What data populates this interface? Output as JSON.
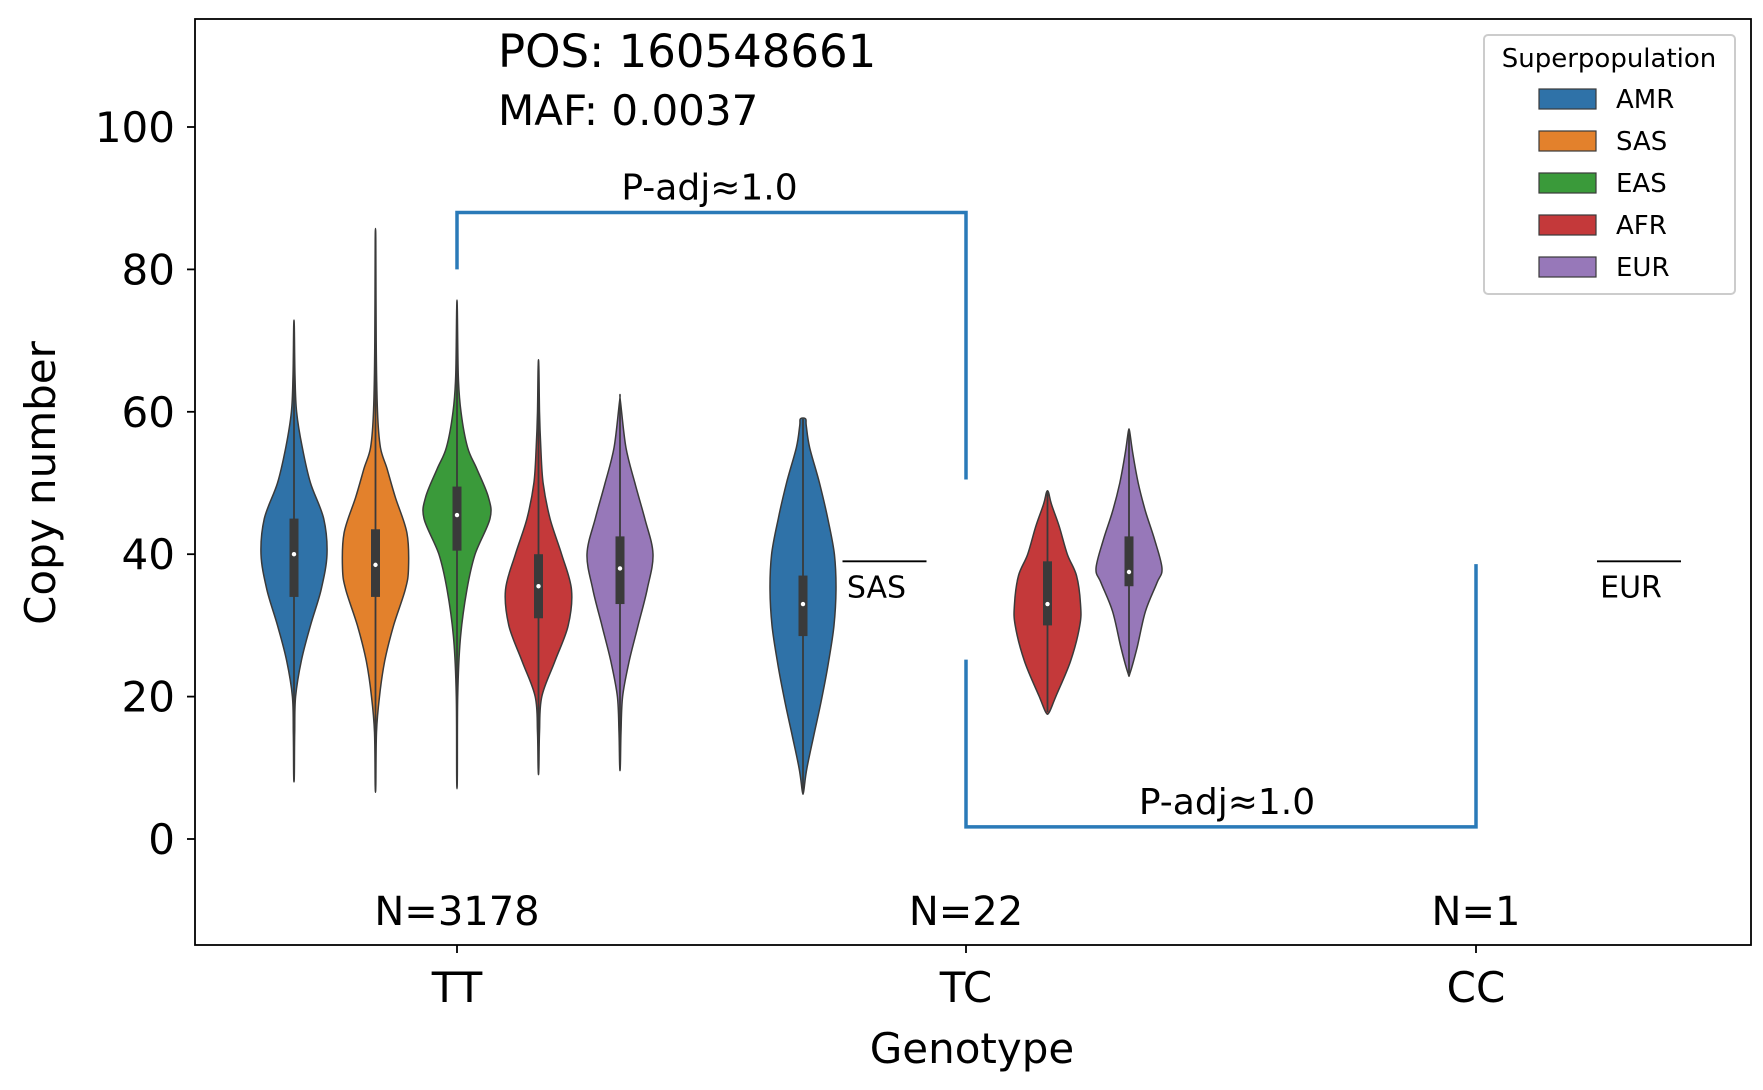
{
  "chart_data": {
    "type": "violin",
    "annotations": {
      "pos": "POS: 160548661",
      "maf": "MAF: 0.0037",
      "pval_upper": "P-adj≈1.0",
      "pval_lower": "P-adj≈1.0"
    },
    "xlabel": "Genotype",
    "ylabel": "Copy number",
    "ylim": [
      -15,
      115
    ],
    "yticks": [
      0,
      20,
      40,
      60,
      80,
      100
    ],
    "categories": [
      "TT",
      "TC",
      "CC"
    ],
    "counts": [
      "N=3178",
      "N=22",
      "N=1"
    ],
    "legend": {
      "title": "Superpopulation",
      "position": "top-right",
      "entries": [
        {
          "name": "AMR",
          "color": "#2f72a8"
        },
        {
          "name": "SAS",
          "color": "#e3812c"
        },
        {
          "name": "EAS",
          "color": "#3a9a3a"
        },
        {
          "name": "AFR",
          "color": "#c4393a"
        },
        {
          "name": "EUR",
          "color": "#9778b9"
        }
      ]
    },
    "single_sample_labels": [
      {
        "category": "TC",
        "group": "SAS",
        "value": 39
      },
      {
        "category": "CC",
        "group": "EUR",
        "value": 39
      }
    ],
    "violins": [
      {
        "category": "TT",
        "group": "AMR",
        "min": 8.8,
        "max": 72,
        "q1": 34,
        "median": 40,
        "q3": 45,
        "profile": [
          [
            8.8,
            0.01
          ],
          [
            15,
            0.02
          ],
          [
            20,
            0.05
          ],
          [
            25,
            0.22
          ],
          [
            30,
            0.5
          ],
          [
            35,
            0.82
          ],
          [
            40,
            1.0
          ],
          [
            45,
            0.9
          ],
          [
            50,
            0.5
          ],
          [
            55,
            0.25
          ],
          [
            60,
            0.08
          ],
          [
            65,
            0.03
          ],
          [
            72,
            0.01
          ]
        ]
      },
      {
        "category": "TT",
        "group": "SAS",
        "min": 7.5,
        "max": 84,
        "q1": 34,
        "median": 38.5,
        "q3": 43.5,
        "profile": [
          [
            7.5,
            0.01
          ],
          [
            15,
            0.03
          ],
          [
            20,
            0.12
          ],
          [
            25,
            0.28
          ],
          [
            30,
            0.55
          ],
          [
            35,
            0.9
          ],
          [
            38,
            1.0
          ],
          [
            43,
            0.95
          ],
          [
            48,
            0.6
          ],
          [
            52,
            0.35
          ],
          [
            55,
            0.15
          ],
          [
            60,
            0.06
          ],
          [
            70,
            0.02
          ],
          [
            84,
            0.01
          ]
        ]
      },
      {
        "category": "TT",
        "group": "EAS",
        "min": 8.5,
        "max": 74.5,
        "q1": 40.5,
        "median": 45.5,
        "q3": 49.5,
        "profile": [
          [
            8.5,
            0.01
          ],
          [
            20,
            0.02
          ],
          [
            28,
            0.1
          ],
          [
            35,
            0.3
          ],
          [
            40,
            0.55
          ],
          [
            45,
            1.0
          ],
          [
            48,
            0.95
          ],
          [
            52,
            0.6
          ],
          [
            55,
            0.32
          ],
          [
            60,
            0.12
          ],
          [
            65,
            0.04
          ],
          [
            74.5,
            0.01
          ]
        ]
      },
      {
        "category": "TT",
        "group": "AFR",
        "min": 9.7,
        "max": 66.5,
        "q1": 31,
        "median": 35.5,
        "q3": 40,
        "profile": [
          [
            9.7,
            0.01
          ],
          [
            15,
            0.03
          ],
          [
            20,
            0.1
          ],
          [
            25,
            0.5
          ],
          [
            30,
            0.9
          ],
          [
            35,
            1.0
          ],
          [
            40,
            0.7
          ],
          [
            45,
            0.35
          ],
          [
            50,
            0.14
          ],
          [
            55,
            0.07
          ],
          [
            60,
            0.03
          ],
          [
            66.5,
            0.01
          ]
        ]
      },
      {
        "category": "TT",
        "group": "EUR",
        "min": 10.2,
        "max": 61.6,
        "q1": 33,
        "median": 38,
        "q3": 42.5,
        "profile": [
          [
            10.2,
            0.01
          ],
          [
            15,
            0.03
          ],
          [
            20,
            0.08
          ],
          [
            25,
            0.28
          ],
          [
            30,
            0.55
          ],
          [
            35,
            0.82
          ],
          [
            40,
            1.0
          ],
          [
            45,
            0.75
          ],
          [
            50,
            0.45
          ],
          [
            55,
            0.18
          ],
          [
            61.6,
            0.01
          ]
        ]
      },
      {
        "category": "TC",
        "group": "AMR",
        "min": 6.7,
        "max": 59,
        "q1": 28.5,
        "median": 33,
        "q3": 37,
        "profile": [
          [
            6.7,
            0.02
          ],
          [
            10,
            0.12
          ],
          [
            15,
            0.35
          ],
          [
            20,
            0.58
          ],
          [
            25,
            0.78
          ],
          [
            30,
            0.94
          ],
          [
            35,
            1.0
          ],
          [
            40,
            0.95
          ],
          [
            45,
            0.75
          ],
          [
            50,
            0.5
          ],
          [
            55,
            0.2
          ],
          [
            58,
            0.1
          ],
          [
            59,
            0.08
          ]
        ]
      },
      {
        "category": "TC",
        "group": "AFR",
        "min": 17.8,
        "max": 48.7,
        "q1": 30,
        "median": 33,
        "q3": 39,
        "profile": [
          [
            17.8,
            0.05
          ],
          [
            20,
            0.25
          ],
          [
            25,
            0.7
          ],
          [
            30,
            0.98
          ],
          [
            33,
            1.0
          ],
          [
            37,
            0.88
          ],
          [
            40,
            0.6
          ],
          [
            44,
            0.35
          ],
          [
            47,
            0.12
          ],
          [
            48.7,
            0.03
          ]
        ]
      },
      {
        "category": "TC",
        "group": "EUR",
        "min": 23.3,
        "max": 57.2,
        "q1": 35.5,
        "median": 37.5,
        "q3": 42.5,
        "profile": [
          [
            23.3,
            0.03
          ],
          [
            27,
            0.25
          ],
          [
            32,
            0.5
          ],
          [
            36,
            0.85
          ],
          [
            38,
            1.0
          ],
          [
            42,
            0.78
          ],
          [
            46,
            0.5
          ],
          [
            50,
            0.28
          ],
          [
            54,
            0.12
          ],
          [
            57.2,
            0.02
          ]
        ]
      }
    ],
    "brackets": [
      {
        "from": "TT",
        "to": "TC",
        "y": 88,
        "left_end": 80,
        "right_end": 50.5,
        "label_key": "pval_upper",
        "placement": "above"
      },
      {
        "from": "TC",
        "to": "CC",
        "y": 1.7,
        "left_end": 25.2,
        "right_end": 38.6,
        "label_key": "pval_lower",
        "placement": "above"
      }
    ]
  }
}
